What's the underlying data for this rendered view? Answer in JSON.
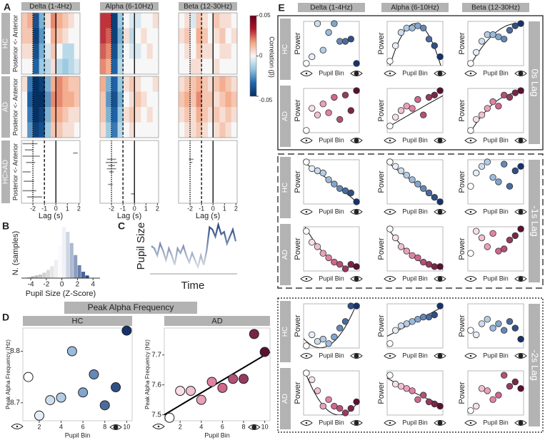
{
  "panel_labels": [
    "A",
    "B",
    "C",
    "D",
    "E"
  ],
  "bands": [
    "Delta (1-4Hz)",
    "Alpha (6-10Hz)",
    "Beta (12-30Hz)"
  ],
  "panel_a": {
    "groups": [
      "HC",
      "AD",
      "HC>AD"
    ],
    "ylabel": "Posterior <- Anterior",
    "xlabel": "Lag (s)",
    "xlim": [
      -3,
      2.1
    ],
    "xticks": [
      -2,
      -1,
      0,
      1,
      2
    ],
    "markers": [
      -2,
      -1,
      0
    ],
    "colorbar": {
      "label": "Correlation (β)",
      "clim": [
        -0.05,
        0.05
      ],
      "ticks": [
        0.05,
        0,
        -0.05
      ],
      "colormap": [
        "#053061",
        "#2166ac",
        "#92c5de",
        "#f7f7f7",
        "#f4a582",
        "#b2182b",
        "#67001f"
      ]
    },
    "heatmaps": [
      [
        [
          [
            0.01,
            0.015,
            -0.04,
            -0.02,
            0.005,
            0.02,
            0.015,
            0.01,
            0.005,
            0.0
          ],
          [
            0.01,
            0.01,
            -0.045,
            -0.025,
            0.0,
            0.015,
            0.01,
            0.005,
            0.0,
            0.0
          ],
          [
            0.005,
            0.005,
            -0.04,
            -0.02,
            -0.005,
            0.01,
            0.0,
            -0.01,
            -0.01,
            0.0
          ],
          [
            0.0,
            0.0,
            -0.035,
            -0.015,
            -0.01,
            0.005,
            -0.01,
            -0.015,
            -0.01,
            -0.005
          ]
        ],
        [
          [
            0.03,
            0.03,
            -0.045,
            -0.015,
            0.0,
            -0.005,
            -0.005,
            0.0,
            0.0,
            0.005
          ],
          [
            0.03,
            0.025,
            -0.045,
            -0.02,
            0.005,
            -0.01,
            0.0,
            0.005,
            0.0,
            0.0
          ],
          [
            0.025,
            0.02,
            -0.04,
            -0.015,
            0.0,
            -0.005,
            -0.005,
            0.0,
            0.005,
            0.0
          ],
          [
            0.02,
            0.015,
            -0.035,
            -0.01,
            0.0,
            0.0,
            0.0,
            0.0,
            0.0,
            0.0
          ]
        ],
        [
          [
            0.0,
            0.005,
            -0.005,
            0.01,
            0.005,
            0.0,
            0.01,
            0.005,
            0.005,
            0.0
          ],
          [
            0.005,
            0.01,
            0.0,
            0.015,
            0.01,
            0.0,
            0.005,
            0.01,
            0.0,
            0.005
          ],
          [
            0.0,
            0.005,
            0.0,
            0.01,
            0.005,
            0.005,
            0.0,
            0.005,
            0.005,
            0.0
          ],
          [
            0.0,
            0.0,
            0.005,
            0.005,
            0.0,
            0.0,
            0.005,
            0.0,
            0.0,
            0.0
          ]
        ]
      ],
      [
        [
          [
            0.005,
            -0.03,
            -0.05,
            -0.045,
            -0.02,
            0.015,
            0.02,
            0.015,
            0.01,
            0.01
          ],
          [
            0.0,
            -0.035,
            -0.05,
            -0.05,
            -0.025,
            0.02,
            0.02,
            0.015,
            0.015,
            0.01
          ],
          [
            0.0,
            -0.03,
            -0.05,
            -0.045,
            -0.02,
            0.015,
            0.015,
            0.01,
            0.005,
            0.005
          ],
          [
            0.0,
            -0.025,
            -0.045,
            -0.04,
            -0.015,
            0.01,
            0.01,
            0.005,
            0.005,
            0.0
          ]
        ],
        [
          [
            0.015,
            -0.02,
            -0.035,
            -0.015,
            0.005,
            0.01,
            0.005,
            0.0,
            0.0,
            0.005
          ],
          [
            0.01,
            -0.025,
            -0.04,
            -0.02,
            0.0,
            0.005,
            0.01,
            0.005,
            0.0,
            0.0
          ],
          [
            0.01,
            -0.02,
            -0.035,
            -0.015,
            0.005,
            0.01,
            0.005,
            0.0,
            0.005,
            0.0
          ],
          [
            0.005,
            -0.015,
            -0.03,
            -0.01,
            0.0,
            0.005,
            0.0,
            0.0,
            0.0,
            0.0
          ]
        ],
        [
          [
            0.005,
            0.01,
            0.01,
            0.015,
            0.01,
            0.005,
            0.01,
            0.015,
            0.01,
            0.005
          ],
          [
            0.01,
            0.015,
            0.01,
            0.02,
            0.01,
            0.01,
            0.005,
            0.01,
            0.015,
            0.01
          ],
          [
            0.005,
            0.01,
            0.005,
            0.015,
            0.01,
            0.005,
            0.01,
            0.005,
            0.01,
            0.005
          ],
          [
            0.0,
            0.005,
            0.005,
            0.01,
            0.005,
            0.0,
            0.005,
            0.01,
            0.005,
            0.0
          ]
        ]
      ]
    ],
    "significant": [
      [
        [
          0.05,
          -2.9,
          -1.6
        ],
        [
          0.15,
          -2.7,
          -2.0
        ],
        [
          0.25,
          -2.9,
          -1.4
        ],
        [
          0.35,
          -2.6,
          -1.8
        ],
        [
          0.5,
          -2.9,
          -2.2
        ],
        [
          0.65,
          -2.8,
          -1.9
        ],
        [
          0.8,
          -2.9,
          -1.7
        ],
        [
          0.9,
          -2.5,
          -1.2
        ],
        [
          0.2,
          1.5,
          1.9
        ]
      ],
      [
        [
          0.3,
          -2.4,
          -1.6
        ],
        [
          0.35,
          -2.5,
          -1.5
        ],
        [
          0.4,
          -2.3,
          -1.7
        ],
        [
          0.45,
          -2.4,
          -1.6
        ],
        [
          0.5,
          -2.2,
          -1.8
        ],
        [
          0.7,
          -2.3,
          -1.9
        ],
        [
          0.85,
          -0.3,
          0.0
        ]
      ],
      [
        [
          0.3,
          -2.1,
          -1.7
        ],
        [
          0.35,
          -2.0,
          -1.8
        ]
      ]
    ]
  },
  "panel_b": {
    "ylabel": "N. (samples)",
    "xlabel": "Pupil Size (Z-Score)",
    "xlim": [
      -5.2,
      4.9
    ],
    "xticks": [
      -4,
      -2,
      0,
      2,
      4
    ],
    "ylim": [
      0,
      60
    ],
    "bins": [
      -4.5,
      -4,
      -3.5,
      -3,
      -2.5,
      -2,
      -1.5,
      -1,
      -0.5,
      0,
      0.5,
      1,
      1.5,
      2,
      2.5,
      3,
      3.5
    ],
    "counts": [
      1,
      2,
      3,
      4,
      6,
      9,
      13,
      20,
      35,
      55,
      50,
      38,
      25,
      14,
      7,
      3
    ],
    "colors": [
      "#a0a0a0",
      "#ffffff",
      "#1b3a7a"
    ]
  },
  "panel_c": {
    "ylabel": "Pupil Size",
    "xlabel": "Time",
    "ylim": [
      0,
      1
    ],
    "values": [
      0.5,
      0.45,
      0.3,
      0.55,
      0.4,
      0.2,
      0.45,
      0.3,
      0.1,
      0.45,
      0.35,
      0.5,
      0.3,
      0.15,
      0.35,
      0.2,
      0.05,
      0.3,
      0.1,
      0.4,
      0.9,
      0.85,
      0.7,
      0.95,
      0.75,
      0.8,
      0.55,
      0.7,
      0.85,
      0.6
    ],
    "colors": [
      "#e3e6ec",
      "#1f3f7a"
    ]
  },
  "panel_d": {
    "title": "Peak Alpha Frequency",
    "xlabel": "Pupil Bin",
    "ylabel": "Peak Alpha Frequency (Hz)",
    "x": [
      1,
      2,
      3,
      4,
      5,
      6,
      7,
      8,
      9,
      10
    ],
    "xlim": [
      0.5,
      10.5
    ],
    "xticks": [
      2,
      4,
      6,
      8,
      10
    ],
    "groups": [
      {
        "name": "HC",
        "values": [
          8.75,
          8.675,
          8.705,
          8.71,
          8.8,
          8.72,
          8.755,
          8.695,
          8.73,
          8.84
        ],
        "ylim": [
          8.665,
          8.845
        ],
        "yticks": [
          8.7,
          8.8
        ],
        "colors": [
          "#ffffff",
          "#8fb3d9",
          "#15326e"
        ]
      },
      {
        "name": "AD",
        "values": [
          7.49,
          7.58,
          7.58,
          7.55,
          7.61,
          7.59,
          7.62,
          7.62,
          7.77,
          7.71
        ],
        "ylim": [
          7.48,
          7.79
        ],
        "yticks": [
          7.5,
          7.6,
          7.7
        ],
        "colors": [
          "#ffffff",
          "#e0719a",
          "#5a1030"
        ],
        "fit": {
          "x": [
            0.5,
            10.5
          ],
          "y": [
            7.5,
            7.71
          ]
        }
      }
    ]
  },
  "panel_e": {
    "ylabel": "Power",
    "xlabel": "Pupil Bin",
    "x": [
      1,
      2,
      3,
      4,
      5,
      6,
      7,
      8,
      9,
      10
    ],
    "xlim": [
      0.5,
      10.5
    ],
    "ylim": [
      0,
      1
    ],
    "fit_x": [
      1,
      5.5,
      10
    ],
    "colors": {
      "HC": [
        "#ffffff",
        "#8fb3d9",
        "#15326e"
      ],
      "AD": [
        "#ffffff",
        "#e0719a",
        "#5a1030"
      ]
    },
    "groups": [
      {
        "label": "0s Lag",
        "rows": [
          {
            "name": "HC",
            "plots": [
              {
                "values": [
                  0.05,
                  0.2,
                  0.95,
                  0.35,
                  0.75,
                  0.95,
                  0.55,
                  0.55,
                  0.6,
                  0.05
                ]
              },
              {
                "values": [
                  0.1,
                  0.45,
                  0.75,
                  0.85,
                  0.85,
                  0.9,
                  0.85,
                  0.6,
                  0.45,
                  0.2
                ],
                "fit": [
                  0.0,
                  0.95,
                  0.05
                ]
              },
              {
                "values": [
                  0.05,
                  0.3,
                  0.55,
                  0.7,
                  0.7,
                  0.65,
                  0.6,
                  0.8,
                  0.9,
                  0.95
                ],
                "fit": [
                  0.02,
                  0.75,
                  0.95
                ]
              }
            ]
          },
          {
            "name": "AD",
            "plots": [
              {
                "values": [
                  0.05,
                  0.55,
                  0.4,
                  0.65,
                  0.45,
                  0.8,
                  0.3,
                  0.85,
                  0.5,
                  0.95
                ]
              },
              {
                "values": [
                  0.15,
                  0.35,
                  0.5,
                  0.6,
                  0.55,
                  0.75,
                  0.4,
                  0.8,
                  0.85,
                  0.95
                ],
                "fit": [
                  0.15,
                  0.48,
                  0.8
                ]
              },
              {
                "values": [
                  0.05,
                  0.3,
                  0.4,
                  0.55,
                  0.7,
                  0.6,
                  0.85,
                  0.8,
                  0.9,
                  0.95
                ],
                "fit": [
                  0.02,
                  0.7,
                  0.9
                ]
              }
            ]
          }
        ]
      },
      {
        "label": "-1s Lag",
        "rows": [
          {
            "name": "HC",
            "plots": [
              {
                "values": [
                  0.95,
                  0.8,
                  0.75,
                  0.7,
                  0.55,
                  0.45,
                  0.35,
                  0.3,
                  0.25,
                  0.05
                ],
                "fit": [
                  0.9,
                  0.5,
                  0.05
                ]
              },
              {
                "values": [
                  0.95,
                  0.85,
                  0.75,
                  0.65,
                  0.55,
                  0.45,
                  0.35,
                  0.25,
                  0.15,
                  0.05
                ],
                "fit": [
                  0.9,
                  0.47,
                  0.05
                ]
              },
              {
                "values": [
                  0.4,
                  0.7,
                  0.85,
                  0.95,
                  0.6,
                  0.5,
                  0.9,
                  0.4,
                  0.75,
                  0.85
                ]
              }
            ]
          },
          {
            "name": "AD",
            "plots": [
              {
                "values": [
                  0.9,
                  0.65,
                  0.55,
                  0.4,
                  0.3,
                  0.2,
                  0.15,
                  0.05,
                  0.15,
                  0.1
                ],
                "fit": [
                  0.95,
                  0.25,
                  0.1
                ]
              },
              {
                "values": [
                  0.95,
                  0.75,
                  0.55,
                  0.45,
                  0.35,
                  0.3,
                  0.2,
                  0.15,
                  0.1,
                  0.1
                ],
                "fit": [
                  0.9,
                  0.3,
                  0.05
                ]
              },
              {
                "values": [
                  0.4,
                  0.9,
                  0.75,
                  0.55,
                  0.85,
                  0.45,
                  0.5,
                  0.7,
                  0.8,
                  0.95
                ]
              }
            ]
          }
        ]
      },
      {
        "label": "-2s Lag",
        "rows": [
          {
            "name": "HC",
            "plots": [
              {
                "values": [
                  0.05,
                  0.3,
                  0.15,
                  0.2,
                  0.1,
                  0.25,
                  0.45,
                  0.6,
                  0.95,
                  0.95
                ],
                "fit": [
                  0.15,
                  0.1,
                  1.0
                ]
              },
              {
                "values": [
                  0.1,
                  0.4,
                  0.5,
                  0.55,
                  0.6,
                  0.65,
                  0.7,
                  0.7,
                  0.75,
                  0.95
                ],
                "fit": [
                  0.3,
                  0.6,
                  0.9
                ]
              },
              {
                "values": [
                  0.4,
                  0.3,
                  0.55,
                  0.65,
                  0.45,
                  0.55,
                  0.4,
                  0.6,
                  0.45,
                  0.2
                ]
              }
            ]
          },
          {
            "name": "AD",
            "plots": [
              {
                "values": [
                  0.95,
                  0.8,
                  0.55,
                  0.2,
                  0.35,
                  0.2,
                  0.15,
                  0.05,
                  0.15,
                  0.3
                ],
                "fit": [
                  0.9,
                  0.05,
                  0.25
                ]
              },
              {
                "values": [
                  0.9,
                  0.7,
                  0.65,
                  0.6,
                  0.55,
                  0.35,
                  0.45,
                  0.3,
                  0.25,
                  0.2
                ],
                "fit": [
                  0.8,
                  0.5,
                  0.25
                ]
              },
              {
                "values": [
                  0.1,
                  0.2,
                  0.6,
                  0.55,
                  0.35,
                  0.45,
                  0.9,
                  0.65,
                  0.75,
                  0.6
                ]
              }
            ]
          }
        ]
      }
    ]
  }
}
